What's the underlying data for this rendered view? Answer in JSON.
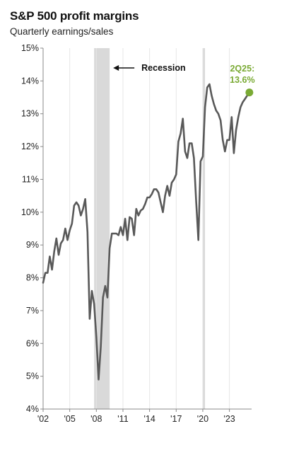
{
  "header": {
    "title": "S&P 500 profit margins",
    "subtitle": "Quarterly earnings/sales"
  },
  "colors": {
    "line": "#595959",
    "recession_band": "#d9d9d9",
    "callout": "#7aaa34",
    "grid": "#e6e6e6",
    "axis": "#888888"
  },
  "chart_data": {
    "type": "line",
    "title": "S&P 500 profit margins",
    "subtitle": "Quarterly earnings/sales",
    "xlabel": "",
    "ylabel": "",
    "x_range": [
      2002.0,
      2025.5
    ],
    "ylim": [
      4,
      15
    ],
    "y_ticks": [
      4,
      5,
      6,
      7,
      8,
      9,
      10,
      11,
      12,
      13,
      14,
      15
    ],
    "y_tick_labels": [
      "4%",
      "5%",
      "6%",
      "7%",
      "8%",
      "9%",
      "10%",
      "11%",
      "12%",
      "13%",
      "14%",
      "15%"
    ],
    "x_ticks": [
      2002,
      2005,
      2008,
      2011,
      2014,
      2017,
      2020,
      2023
    ],
    "x_tick_labels": [
      "'02",
      "'05",
      "'08",
      "'11",
      "'14",
      "'17",
      "'20",
      "'23"
    ],
    "grid": "vertical",
    "recessions": [
      {
        "start": 2007.75,
        "end": 2009.5
      },
      {
        "start": 2020.0,
        "end": 2020.25
      }
    ],
    "annotations": [
      {
        "text": "Recession"
      },
      {
        "text_lines": [
          "2Q25:",
          "13.6%"
        ]
      }
    ],
    "series": [
      {
        "x": [
          2002.0,
          2002.25,
          2002.5,
          2002.75,
          2003.0,
          2003.25,
          2003.5,
          2003.75,
          2004.0,
          2004.25,
          2004.5,
          2004.75,
          2005.0,
          2005.25,
          2005.5,
          2005.75,
          2006.0,
          2006.25,
          2006.5,
          2006.75,
          2007.0,
          2007.25,
          2007.5,
          2007.75,
          2008.0,
          2008.25,
          2008.5,
          2008.75,
          2009.0,
          2009.25,
          2009.5,
          2009.75,
          2010.0,
          2010.25,
          2010.5,
          2010.75,
          2011.0,
          2011.25,
          2011.5,
          2011.75,
          2012.0,
          2012.25,
          2012.5,
          2012.75,
          2013.0,
          2013.25,
          2013.5,
          2013.75,
          2014.0,
          2014.25,
          2014.5,
          2014.75,
          2015.0,
          2015.25,
          2015.5,
          2015.75,
          2016.0,
          2016.25,
          2016.5,
          2016.75,
          2017.0,
          2017.25,
          2017.5,
          2017.75,
          2018.0,
          2018.25,
          2018.5,
          2018.75,
          2019.0,
          2019.25,
          2019.5,
          2019.75,
          2020.0,
          2020.25,
          2020.5,
          2020.75,
          2021.0,
          2021.25,
          2021.5,
          2021.75,
          2022.0,
          2022.25,
          2022.5,
          2022.75,
          2023.0,
          2023.25,
          2023.5,
          2023.75,
          2024.0,
          2024.25,
          2024.5,
          2024.75,
          2025.0,
          2025.25
        ],
        "y": [
          7.85,
          8.15,
          8.15,
          8.65,
          8.25,
          8.8,
          9.2,
          8.7,
          9.05,
          9.15,
          9.5,
          9.15,
          9.45,
          9.65,
          10.2,
          10.3,
          10.2,
          9.9,
          10.1,
          10.4,
          9.4,
          6.75,
          7.6,
          7.2,
          6.2,
          4.9,
          5.9,
          7.4,
          7.75,
          7.4,
          8.9,
          9.35,
          9.35,
          9.35,
          9.3,
          9.55,
          9.3,
          9.8,
          9.15,
          9.85,
          9.8,
          9.3,
          10.1,
          9.9,
          10.05,
          10.1,
          10.25,
          10.45,
          10.45,
          10.55,
          10.7,
          10.7,
          10.6,
          10.3,
          10.0,
          10.5,
          10.8,
          10.5,
          10.9,
          11.0,
          11.15,
          12.15,
          12.4,
          12.85,
          11.85,
          11.65,
          12.1,
          12.1,
          11.65,
          10.35,
          9.15,
          11.55,
          11.7,
          13.2,
          13.8,
          13.9,
          13.55,
          13.3,
          13.1,
          13.0,
          12.8,
          12.2,
          11.85,
          12.2,
          12.2,
          12.9,
          11.8,
          12.5,
          12.9,
          13.2,
          13.35,
          13.45,
          13.55,
          13.65
        ]
      }
    ]
  }
}
